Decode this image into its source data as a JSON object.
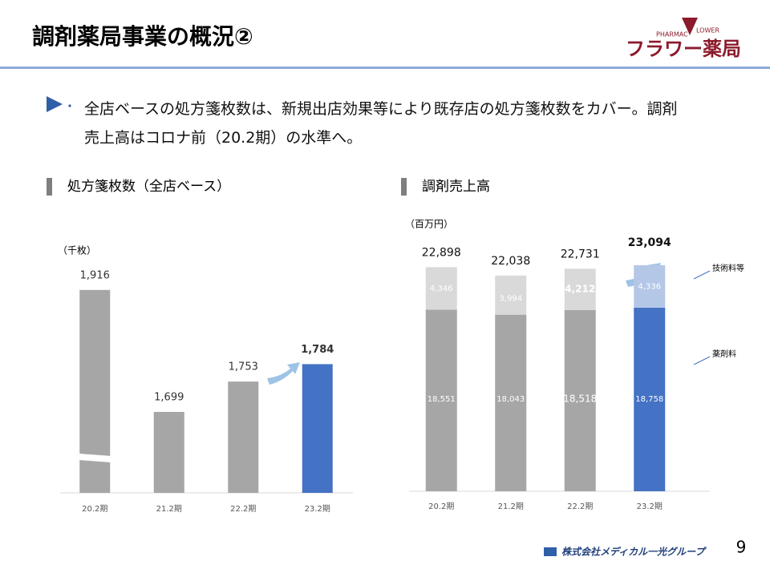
{
  "header": {
    "title": "調剤薬局事業の概況②",
    "logo_top": "PHARMAC",
    "logo_flower": "LOWER",
    "logo": "フラワー薬局"
  },
  "bullet": "全店ベースの処方箋枚数は、新規出店効果等により既存店の処方箋枚数をカバー。調剤売上高はコロナ前（20.2期）の水準へ。",
  "chart_data": [
    {
      "type": "bar",
      "title": "処方箋枚数（全店ベース）",
      "unit": "（千枚）",
      "categories": [
        "20.2期",
        "21.2期",
        "22.2期",
        "23.2期"
      ],
      "values": [
        1916,
        1699,
        1753,
        1784
      ],
      "value_labels": [
        "1,916",
        "1,699",
        "1,753",
        "1,784"
      ],
      "colors": [
        "#a6a6a6",
        "#a6a6a6",
        "#a6a6a6",
        "#4472c4"
      ],
      "highlight": 3,
      "ylim": [
        1555,
        1930
      ]
    },
    {
      "type": "stacked_bar",
      "title": "調剤売上高",
      "unit": "（百万円）",
      "categories": [
        "20.2期",
        "21.2期",
        "22.2期",
        "23.2期"
      ],
      "series": [
        {
          "name": "薬剤料",
          "colors": [
            "#a6a6a6",
            "#a6a6a6",
            "#a6a6a6",
            "#4472c4"
          ],
          "values": [
            18551,
            18043,
            18518,
            18758
          ],
          "value_labels": [
            "18,551",
            "18,043",
            "18,518",
            "18,758"
          ]
        },
        {
          "name": "技術料等",
          "colors": [
            "#d9d9d9",
            "#d9d9d9",
            "#d9d9d9",
            "#b4c7e7"
          ],
          "values": [
            4346,
            3994,
            4212,
            4336
          ],
          "value_labels": [
            "4,346",
            "3,994",
            "4,212",
            "4,336"
          ]
        }
      ],
      "totals": [
        22898,
        22038,
        22731,
        23094
      ],
      "total_labels": [
        "22,898",
        "22,038",
        "22,731",
        "23,094"
      ],
      "highlight": 3,
      "ylim": [
        0,
        23500
      ]
    }
  ],
  "footer": {
    "company": "株式会社メディカル一光グループ",
    "page": "9"
  }
}
